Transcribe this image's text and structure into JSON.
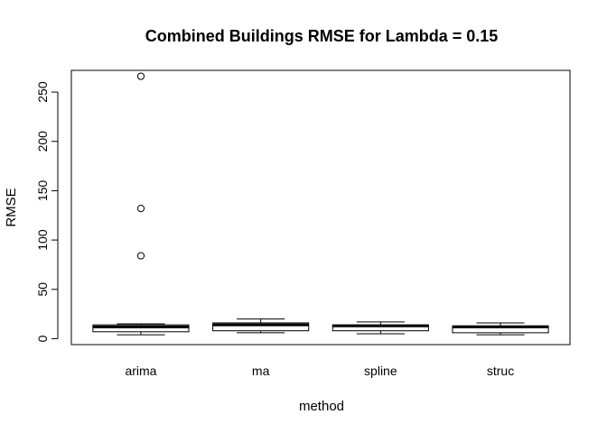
{
  "chart_data": {
    "type": "box",
    "title": "Combined Buildings RMSE for Lambda =  0.15",
    "xlabel": "method",
    "ylabel": "RMSE",
    "ylim": [
      -6,
      272
    ],
    "yticks": [
      0,
      50,
      100,
      150,
      200,
      250
    ],
    "grid": false,
    "legend": "none",
    "categories": [
      "arima",
      "ma",
      "spline",
      "struc"
    ],
    "boxes": [
      {
        "name": "arima",
        "whisker_low": 4,
        "q1": 7,
        "median": 12,
        "q3": 14,
        "whisker_high": 15,
        "outliers": [
          84,
          132,
          266
        ]
      },
      {
        "name": "ma",
        "whisker_low": 6,
        "q1": 8,
        "median": 14,
        "q3": 16,
        "whisker_high": 20,
        "outliers": []
      },
      {
        "name": "spline",
        "whisker_low": 5,
        "q1": 8,
        "median": 13,
        "q3": 14,
        "whisker_high": 17,
        "outliers": []
      },
      {
        "name": "struc",
        "whisker_low": 4,
        "q1": 6,
        "median": 12,
        "q3": 13,
        "whisker_high": 16,
        "outliers": []
      }
    ]
  }
}
